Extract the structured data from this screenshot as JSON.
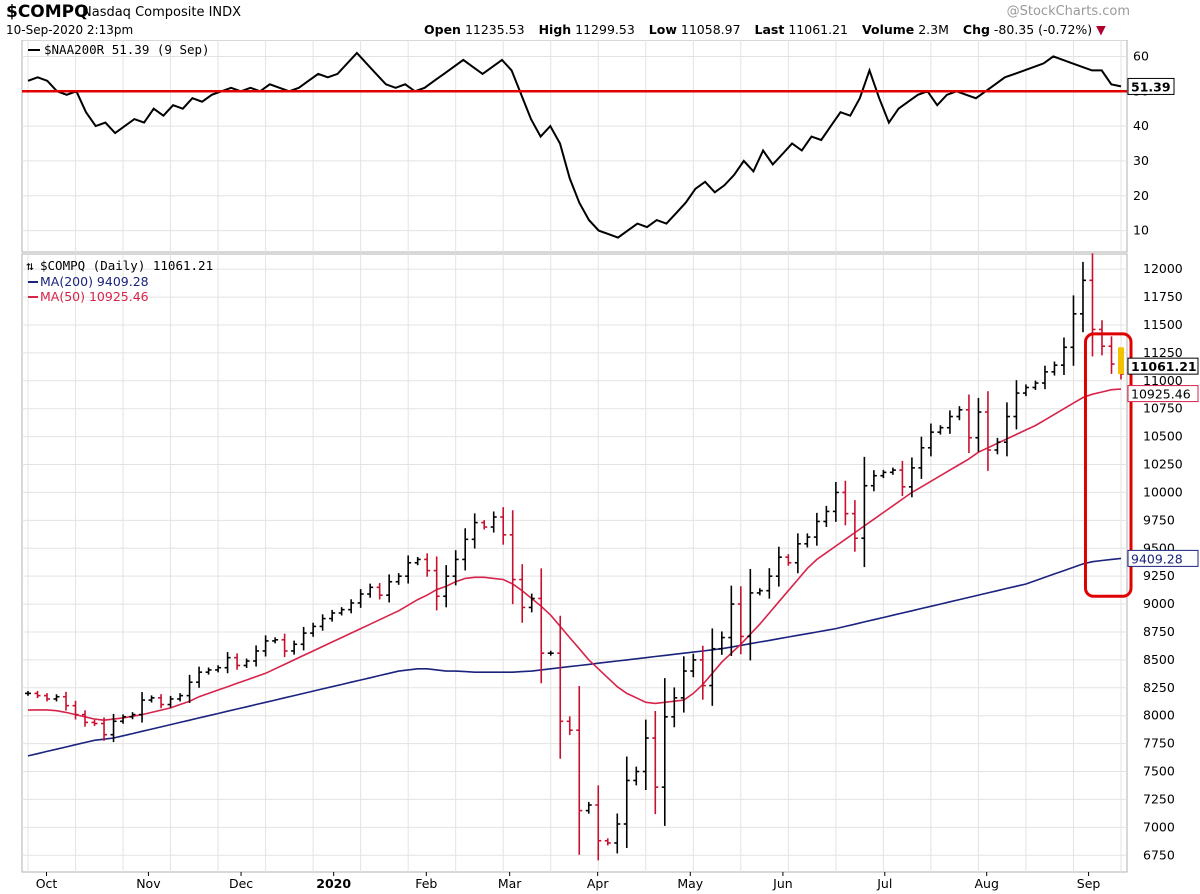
{
  "header": {
    "symbol": "$COMPQ",
    "name": "Nasdaq Composite INDX",
    "date": "10-Sep-2020 2:13pm",
    "watermark": "@StockCharts.com",
    "open_label": "Open",
    "open": "11235.53",
    "high_label": "High",
    "high": "11299.53",
    "low_label": "Low",
    "low": "11058.97",
    "last_label": "Last",
    "last": "11061.21",
    "volume_label": "Volume",
    "volume": "2.3M",
    "chg_label": "Chg",
    "chg": "-80.35 (-0.72%)",
    "chg_arrow": "▼"
  },
  "colors": {
    "up_bar": "#000000",
    "down_bar": "#c8102e",
    "ma200": "#1a237e",
    "ma50": "#d6244a",
    "threshold_line": "#e00000",
    "highlight_box": "#e00000",
    "highlight_bar": "#f2c200",
    "grid": "#e3e3e3"
  },
  "chart_data": [
    {
      "type": "line",
      "title": "$NAA200R 51.39 (9 Sep)",
      "legend": "$NAA200R 51.39 (9 Sep)",
      "last_value_tag": "51.39",
      "y_ticks": [
        10,
        20,
        30,
        40,
        50,
        60
      ],
      "ylim": [
        5,
        63
      ],
      "reference_line": 50,
      "series": [
        {
          "values": [
            53,
            54,
            53,
            50,
            49,
            50,
            44,
            40,
            41,
            38,
            40,
            42,
            41,
            45,
            43,
            46,
            45,
            48,
            47,
            49,
            50,
            51,
            50,
            51,
            50,
            52,
            51,
            50,
            51,
            53,
            55,
            54,
            55,
            58,
            61,
            58,
            55,
            52,
            51,
            52,
            50,
            51,
            53,
            55,
            57,
            59,
            57,
            55,
            57,
            59,
            56,
            49,
            42,
            37,
            40,
            35,
            25,
            18,
            13,
            10,
            9,
            8,
            10,
            12,
            11,
            13,
            12,
            15,
            18,
            22,
            24,
            21,
            23,
            26,
            30,
            27,
            33,
            29,
            32,
            35,
            33,
            37,
            36,
            40,
            44,
            43,
            48,
            56,
            48,
            41,
            45,
            47,
            49,
            50,
            46,
            49,
            50,
            49,
            48,
            50,
            52,
            54,
            55,
            56,
            57,
            58,
            60,
            59,
            58,
            57,
            56,
            56,
            52,
            51.39
          ]
        }
      ]
    },
    {
      "type": "ohlc",
      "title": "$COMPQ (Daily) 11061.21",
      "legend": [
        "$COMPQ (Daily) 11061.21",
        "MA(200) 9409.28",
        "MA(50) 10925.46"
      ],
      "x_ticks": [
        "Oct",
        "Nov",
        "Dec",
        "2020",
        "Feb",
        "Mar",
        "Apr",
        "May",
        "Jun",
        "Jul",
        "Aug",
        "Sep"
      ],
      "y_ticks": [
        6750,
        7000,
        7250,
        7500,
        7750,
        8000,
        8250,
        8500,
        8750,
        9000,
        9250,
        9500,
        9750,
        10000,
        10250,
        10500,
        10750,
        11000,
        11250,
        11500,
        11750,
        12000
      ],
      "ylim": [
        6600,
        12100
      ],
      "price_tags": {
        "last": "11061.21",
        "ma50": "10925.46",
        "ma200": "9409.28"
      },
      "close": [
        8200,
        8180,
        8150,
        8170,
        8090,
        8010,
        7940,
        7930,
        7830,
        7950,
        7990,
        8010,
        8140,
        8160,
        8100,
        8150,
        8180,
        8300,
        8390,
        8410,
        8430,
        8520,
        8450,
        8490,
        8580,
        8670,
        8680,
        8580,
        8640,
        8740,
        8800,
        8870,
        8920,
        8950,
        9010,
        9090,
        9150,
        9080,
        9200,
        9250,
        9370,
        9400,
        9300,
        9070,
        9250,
        9400,
        9580,
        9730,
        9690,
        9780,
        9620,
        9220,
        8970,
        9050,
        8560,
        8560,
        7950,
        7870,
        7150,
        7200,
        6880,
        6860,
        7030,
        7420,
        7500,
        7800,
        7360,
        7990,
        8160,
        8400,
        8500,
        8270,
        8600,
        8700,
        9000,
        8710,
        9100,
        9120,
        9250,
        9420,
        9370,
        9540,
        9600,
        9740,
        9830,
        10000,
        9810,
        9590,
        10060,
        10150,
        10180,
        10200,
        10050,
        10220,
        10400,
        10540,
        10580,
        10680,
        10740,
        10490,
        10720,
        10380,
        10450,
        10680,
        10890,
        10940,
        10980,
        11080,
        11140,
        11300,
        11600,
        11900,
        11460,
        11310,
        11150,
        11061.21
      ],
      "ma50": [
        8050,
        8052,
        8052,
        8045,
        8030,
        8010,
        7990,
        7970,
        7960,
        7970,
        7980,
        7995,
        8010,
        8030,
        8050,
        8070,
        8100,
        8130,
        8170,
        8200,
        8230,
        8260,
        8290,
        8320,
        8350,
        8380,
        8420,
        8460,
        8500,
        8540,
        8580,
        8620,
        8660,
        8700,
        8740,
        8780,
        8820,
        8860,
        8900,
        8940,
        8990,
        9040,
        9080,
        9130,
        9160,
        9200,
        9230,
        9240,
        9240,
        9230,
        9220,
        9180,
        9120,
        9050,
        8980,
        8900,
        8800,
        8700,
        8600,
        8500,
        8420,
        8340,
        8260,
        8200,
        8160,
        8120,
        8110,
        8120,
        8130,
        8140,
        8200,
        8280,
        8380,
        8480,
        8560,
        8640,
        8730,
        8820,
        8920,
        9020,
        9120,
        9220,
        9320,
        9400,
        9460,
        9520,
        9580,
        9640,
        9700,
        9760,
        9820,
        9880,
        9940,
        10000,
        10050,
        10100,
        10150,
        10200,
        10250,
        10300,
        10360,
        10400,
        10440,
        10480,
        10520,
        10560,
        10600,
        10650,
        10700,
        10750,
        10800,
        10850,
        10880,
        10900,
        10920,
        10925.46
      ],
      "ma200": [
        7640,
        7660,
        7680,
        7700,
        7720,
        7740,
        7760,
        7780,
        7790,
        7800,
        7820,
        7840,
        7860,
        7880,
        7900,
        7920,
        7940,
        7960,
        7980,
        8000,
        8020,
        8040,
        8060,
        8080,
        8100,
        8120,
        8140,
        8160,
        8180,
        8200,
        8220,
        8240,
        8260,
        8280,
        8300,
        8320,
        8340,
        8360,
        8380,
        8400,
        8410,
        8420,
        8420,
        8410,
        8400,
        8400,
        8395,
        8390,
        8390,
        8390,
        8390,
        8390,
        8395,
        8400,
        8410,
        8420,
        8430,
        8440,
        8450,
        8460,
        8470,
        8480,
        8490,
        8500,
        8510,
        8520,
        8530,
        8540,
        8550,
        8560,
        8570,
        8580,
        8590,
        8600,
        8615,
        8630,
        8645,
        8660,
        8675,
        8690,
        8705,
        8720,
        8735,
        8750,
        8765,
        8780,
        8800,
        8820,
        8840,
        8860,
        8880,
        8900,
        8920,
        8940,
        8960,
        8980,
        9000,
        9020,
        9040,
        9060,
        9080,
        9100,
        9120,
        9140,
        9160,
        9180,
        9210,
        9240,
        9270,
        9300,
        9330,
        9360,
        9380,
        9390,
        9400,
        9409.28
      ]
    }
  ]
}
